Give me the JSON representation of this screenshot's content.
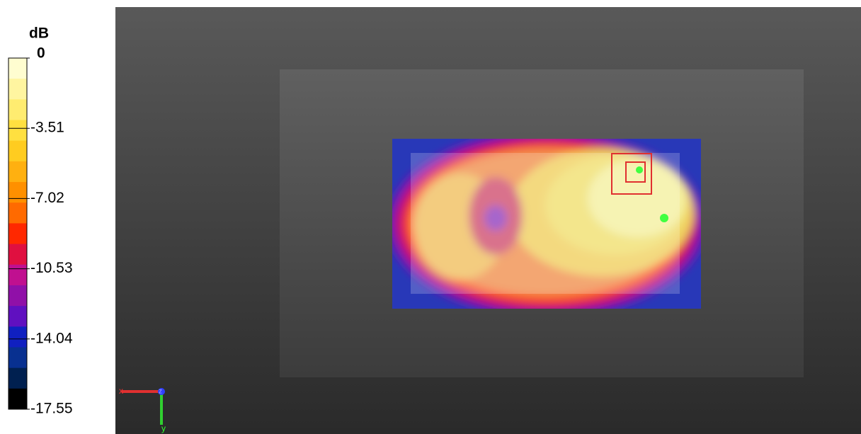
{
  "colorbar": {
    "unit": "dB",
    "labels": [
      "0",
      "-3.51",
      "-7.02",
      "-10.53",
      "-14.04",
      "-17.55"
    ]
  },
  "axes": {
    "x": "x",
    "y": "y",
    "z": "z"
  }
}
